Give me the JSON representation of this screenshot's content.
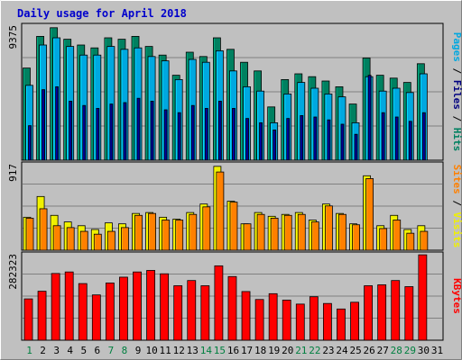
{
  "chart_data": {
    "type": "bar",
    "title": "Daily usage for April 2018",
    "categories": [
      "1",
      "2",
      "3",
      "4",
      "5",
      "6",
      "7",
      "8",
      "9",
      "10",
      "11",
      "12",
      "13",
      "14",
      "15",
      "16",
      "17",
      "18",
      "19",
      "20",
      "21",
      "22",
      "23",
      "24",
      "25",
      "26",
      "27",
      "28",
      "29",
      "30",
      "31"
    ],
    "weekend_days": [
      1,
      7,
      8,
      14,
      15,
      21,
      22,
      28,
      29
    ],
    "colors": {
      "background": "#c0c0c0",
      "plot_bg": "#c0c0c0",
      "grid": "#808080",
      "title": "#0000cc",
      "hits": "#008060",
      "files": "#00a8e0",
      "pages": "#000080",
      "visits": "#f0f000",
      "sites": "#ff8000",
      "kbytes": "#ff0000",
      "weekday_label": "#000000",
      "weekend_label": "#008040"
    },
    "panels": [
      {
        "name": "top",
        "max_label": "9375",
        "ylim": [
          0,
          9375
        ],
        "right_label_parts": [
          {
            "text": "Pages",
            "color": "#00a8e0"
          },
          {
            "text": " / ",
            "color": "#000000"
          },
          {
            "text": "Files",
            "color": "#000080"
          },
          {
            "text": " / ",
            "color": "#000000"
          },
          {
            "text": "Hits",
            "color": "#008060"
          }
        ],
        "series": [
          {
            "name": "Hits",
            "values": [
              6400,
              8600,
              9200,
              8400,
              8000,
              7800,
              8500,
              8400,
              8600,
              7900,
              7300,
              5900,
              7500,
              7200,
              8500,
              7700,
              6800,
              6200,
              3700,
              5600,
              6000,
              5800,
              5500,
              5100,
              3900,
              7100,
              5900,
              5700,
              5400,
              6700,
              0
            ]
          },
          {
            "name": "Files",
            "values": [
              5200,
              8000,
              8500,
              7900,
              7300,
              7300,
              7900,
              7700,
              7800,
              7200,
              6900,
              5600,
              7000,
              6800,
              7600,
              6200,
              5100,
              4800,
              2600,
              4600,
              5400,
              5000,
              4600,
              4400,
              2600,
              5800,
              4800,
              5000,
              4700,
              6000,
              0
            ]
          },
          {
            "name": "Pages",
            "values": [
              2400,
              4900,
              5100,
              4100,
              3800,
              3600,
              3900,
              4000,
              4300,
              4100,
              3500,
              3300,
              3800,
              3600,
              4100,
              3600,
              2900,
              2600,
              2100,
              2900,
              3100,
              3000,
              2800,
              2500,
              1800,
              5900,
              3300,
              3000,
              2700,
              3300,
              0
            ]
          }
        ]
      },
      {
        "name": "middle",
        "max_label": "917",
        "ylim": [
          0,
          917
        ],
        "right_label_parts": [
          {
            "text": "Sites",
            "color": "#ff8000"
          },
          {
            "text": " / ",
            "color": "#000000"
          },
          {
            "text": "Visits",
            "color": "#f0f000"
          }
        ],
        "series": [
          {
            "name": "Visits",
            "values": [
              350,
              570,
              370,
              300,
              260,
              220,
              290,
              280,
              390,
              400,
              350,
              330,
              400,
              490,
              890,
              520,
              280,
              400,
              360,
              380,
              400,
              320,
              490,
              390,
              280,
              790,
              260,
              370,
              220,
              260,
              0
            ]
          },
          {
            "name": "Sites",
            "values": [
              340,
              440,
              260,
              240,
              200,
              170,
              200,
              240,
              370,
              390,
              320,
              320,
              380,
              460,
              830,
              510,
              280,
              380,
              340,
              370,
              380,
              300,
              470,
              380,
              270,
              760,
              230,
              320,
              180,
              200,
              0
            ]
          }
        ]
      },
      {
        "name": "bottom",
        "max_label": "282323",
        "ylim": [
          0,
          282323
        ],
        "right_label_parts": [
          {
            "text": "KBytes",
            "color": "#ff0000"
          }
        ],
        "series": [
          {
            "name": "KBytes",
            "values": [
              135000,
              160000,
              218000,
              223000,
              185000,
              148000,
              187000,
              206000,
              223000,
              228000,
              217000,
              178000,
              195000,
              178000,
              243000,
              208000,
              159000,
              133000,
              152000,
              131000,
              118000,
              142000,
              120000,
              102000,
              124000,
              178000,
              181000,
              195000,
              175000,
              279000,
              0
            ]
          }
        ]
      }
    ]
  }
}
